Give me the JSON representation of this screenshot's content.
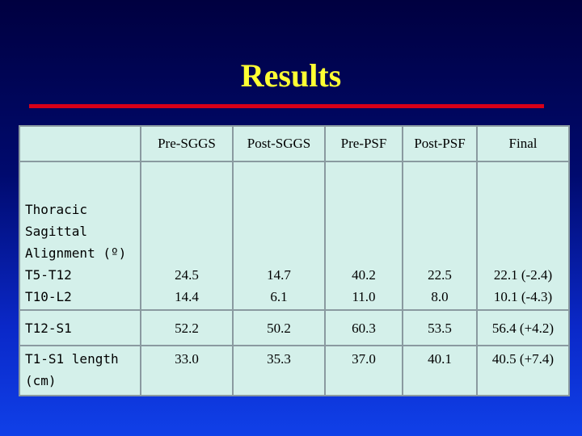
{
  "slide": {
    "title": "Results",
    "colors": {
      "title": "#ffff33",
      "rule": "#d80018",
      "table_bg": "#d4f0ea"
    }
  },
  "table": {
    "headers": [
      "",
      "Pre-SGGS",
      "Post-SGGS",
      "Pre-PSF",
      "Post-PSF",
      "Final"
    ],
    "rows": [
      {
        "label_lines": [
          "Thoracic",
          "Sagittal",
          "Alignment (º)",
          "T5-T12",
          "T10-L2"
        ],
        "cells": [
          [
            "24.5",
            "14.4"
          ],
          [
            "14.7",
            "6.1"
          ],
          [
            "40.2",
            "11.0"
          ],
          [
            "22.5",
            "8.0"
          ],
          [
            "22.1 (-2.4)",
            "10.1 (-4.3)"
          ]
        ]
      },
      {
        "label_lines": [
          "T12-S1"
        ],
        "cells": [
          [
            "52.2"
          ],
          [
            "50.2"
          ],
          [
            "60.3"
          ],
          [
            "53.5"
          ],
          [
            "56.4 (+4.2)"
          ]
        ]
      },
      {
        "label_lines": [
          "T1-S1 length",
          "(cm)"
        ],
        "cells": [
          [
            "33.0"
          ],
          [
            "35.3"
          ],
          [
            "37.0"
          ],
          [
            "40.1"
          ],
          [
            "40.5 (+7.4)"
          ]
        ]
      }
    ]
  }
}
